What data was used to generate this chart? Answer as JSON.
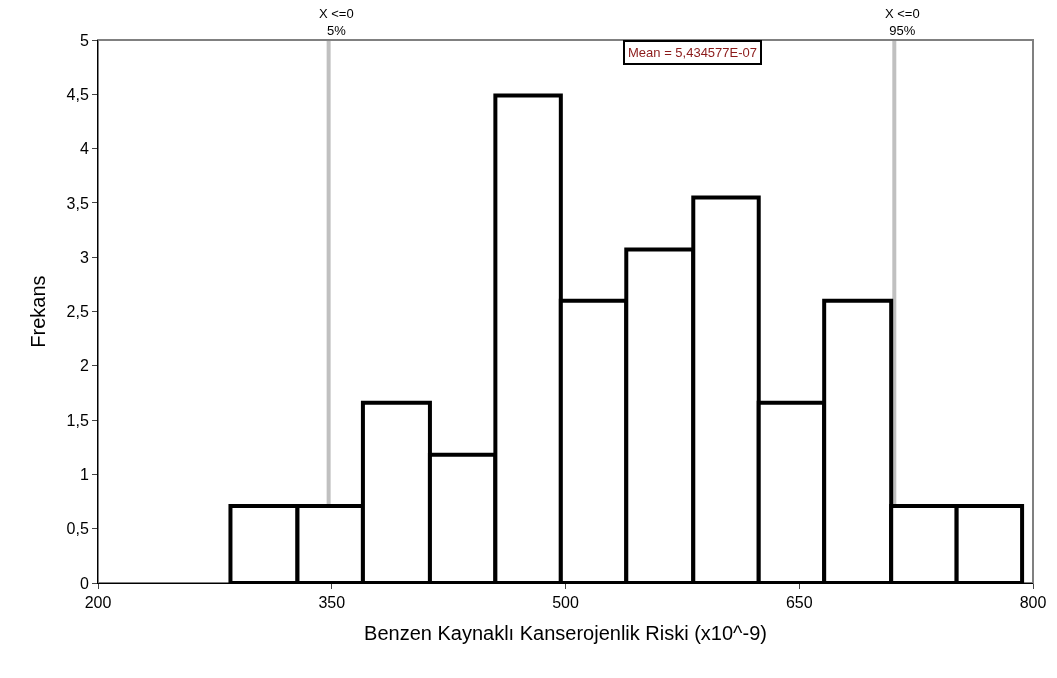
{
  "chart_data": {
    "type": "histogram",
    "xlabel": "Benzen Kaynaklı Kanserojenlik Riski (x10^-9)",
    "ylabel": "Frekans",
    "bins": [
      285,
      328,
      370,
      413,
      455,
      497,
      539,
      582,
      624,
      666,
      709,
      751,
      793
    ],
    "values": [
      0.71,
      0.71,
      1.66,
      1.18,
      4.49,
      2.6,
      3.07,
      3.55,
      1.66,
      2.6,
      0.71,
      0.71
    ],
    "color": "#000000",
    "xlim": [
      200,
      800
    ],
    "xticks": [
      200,
      350,
      500,
      650,
      800
    ],
    "ylim": [
      0,
      5
    ],
    "yticks": [
      0,
      {
        "value": 0.5,
        "label": "0,5"
      },
      1,
      {
        "value": 1.5,
        "label": "1,5"
      },
      2,
      {
        "value": 2.5,
        "label": "2,5"
      },
      3,
      {
        "value": 3.5,
        "label": "3,5"
      },
      4,
      {
        "value": 4.5,
        "label": "4,5"
      },
      5
    ],
    "ref_lines": [
      {
        "axis": "x",
        "value": 348,
        "color": "#c0c0c0"
      },
      {
        "axis": "x",
        "value": 711,
        "color": "#c0c0c0"
      }
    ],
    "annotations": [
      "Mean = 5,434577E-07",
      {
        "text": "X <=0\n5%",
        "x": 348,
        "y": 5
      },
      {
        "text": "X <=0\n95%",
        "x": 711,
        "y": 5
      }
    ],
    "grid": false
  }
}
